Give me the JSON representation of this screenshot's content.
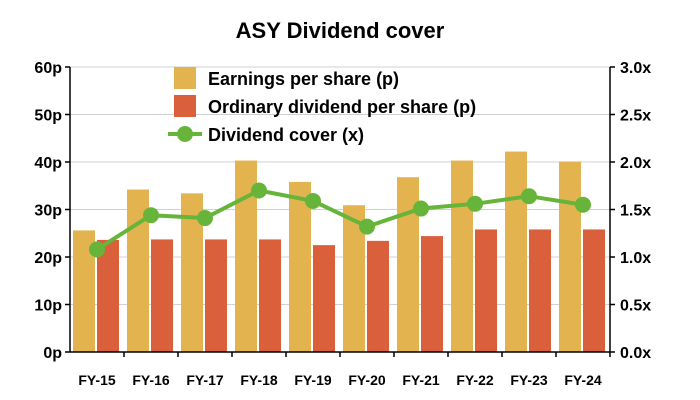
{
  "chart_data": {
    "type": "bar",
    "title": "ASY Dividend cover",
    "categories": [
      "FY-15",
      "FY-16",
      "FY-17",
      "FY-18",
      "FY-19",
      "FY-20",
      "FY-21",
      "FY-22",
      "FY-23",
      "FY-24"
    ],
    "series": [
      {
        "name": "Earnings per share (p)",
        "type": "bar",
        "axis": "left",
        "color": "#E3B34F",
        "values": [
          25.6,
          34.2,
          33.4,
          40.3,
          35.8,
          30.9,
          36.8,
          40.3,
          42.2,
          40.1
        ]
      },
      {
        "name": "Ordinary dividend per share (p)",
        "type": "bar",
        "axis": "left",
        "color": "#D9603A",
        "values": [
          23.6,
          23.7,
          23.7,
          23.7,
          22.5,
          23.4,
          24.4,
          25.8,
          25.8,
          25.8
        ]
      },
      {
        "name": "Dividend cover (x)",
        "type": "line",
        "axis": "right",
        "color": "#66B53A",
        "values": [
          1.08,
          1.44,
          1.41,
          1.7,
          1.59,
          1.32,
          1.51,
          1.56,
          1.64,
          1.55
        ]
      }
    ],
    "y_left": {
      "ticks": [
        "0p",
        "10p",
        "20p",
        "30p",
        "40p",
        "50p",
        "60p"
      ],
      "ylim": [
        0,
        60
      ]
    },
    "y_right": {
      "ticks": [
        "0.0x",
        "0.5x",
        "1.0x",
        "1.5x",
        "2.0x",
        "2.5x",
        "3.0x"
      ],
      "ylim": [
        0,
        3
      ]
    },
    "grid": true,
    "legend_position": "top-center"
  }
}
